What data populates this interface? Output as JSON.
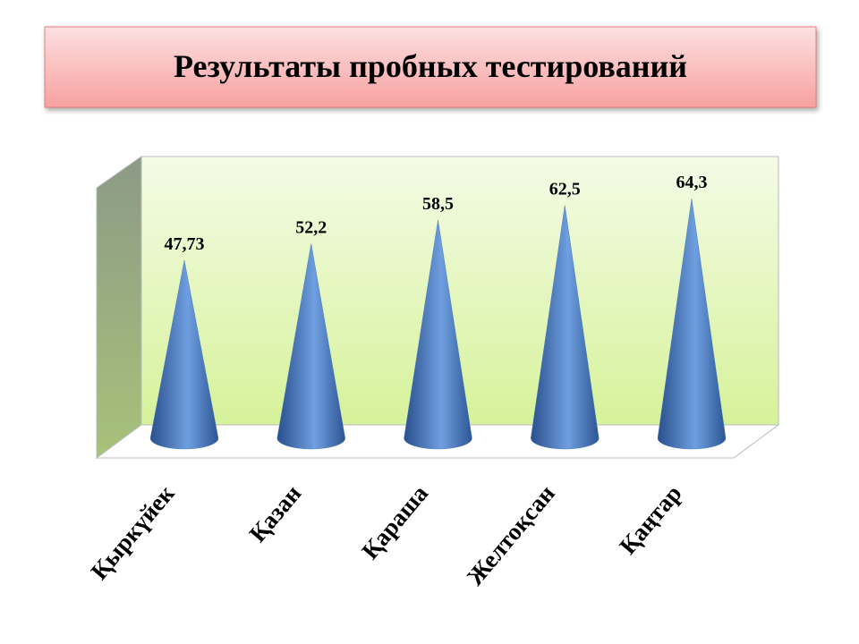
{
  "chart_data": {
    "type": "cone",
    "title": "Результаты пробных тестирований",
    "categories": [
      "Қыркүйек",
      "Қазан",
      "Қараша",
      "Желтоқсан",
      "Қаңтар"
    ],
    "values": [
      47.73,
      52.2,
      58.5,
      62.5,
      64.3
    ],
    "value_labels": [
      "47,73",
      "52,2",
      "58,5",
      "62,5",
      "64,3"
    ],
    "color": "#4f81bd"
  }
}
